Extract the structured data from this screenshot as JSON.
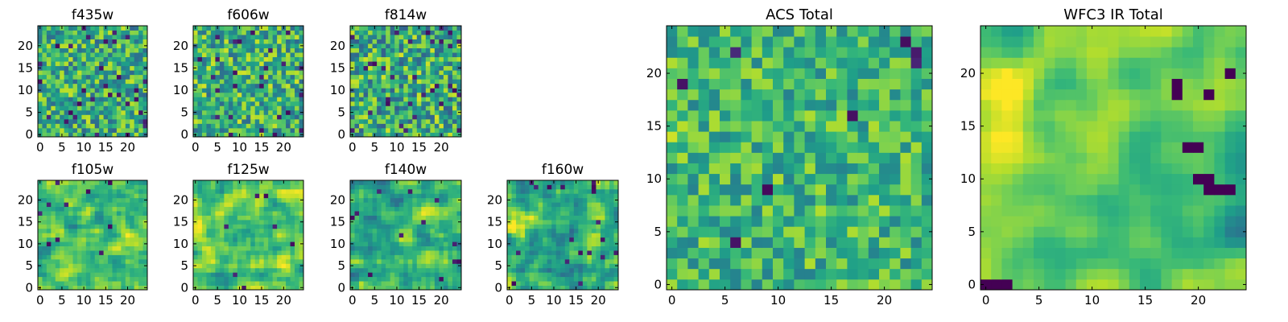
{
  "figure": {
    "colormap": "viridis",
    "axis_color": "#000000",
    "background": "#ffffff"
  },
  "chart_data": [
    {
      "type": "heatmap",
      "title": "f435w",
      "grid_size": 25,
      "xticks": [
        0,
        5,
        10,
        15,
        20
      ],
      "yticks": [
        0,
        5,
        10,
        15,
        20
      ],
      "xlim": [
        -0.5,
        24.5
      ],
      "ylim": [
        -0.5,
        24.5
      ],
      "value_range": [
        0,
        1
      ],
      "seed": 435,
      "smooth": 0,
      "dark_fraction": 0.045,
      "base": 0.62,
      "spread": 0.3,
      "bright_patches": []
    },
    {
      "type": "heatmap",
      "title": "f606w",
      "grid_size": 25,
      "xticks": [
        0,
        5,
        10,
        15,
        20
      ],
      "yticks": [
        0,
        5,
        10,
        15,
        20
      ],
      "xlim": [
        -0.5,
        24.5
      ],
      "ylim": [
        -0.5,
        24.5
      ],
      "value_range": [
        0,
        1
      ],
      "seed": 606,
      "smooth": 0,
      "dark_fraction": 0.035,
      "base": 0.64,
      "spread": 0.3,
      "bright_patches": []
    },
    {
      "type": "heatmap",
      "title": "f814w",
      "grid_size": 25,
      "xticks": [
        0,
        5,
        10,
        15,
        20
      ],
      "yticks": [
        0,
        5,
        10,
        15,
        20
      ],
      "xlim": [
        -0.5,
        24.5
      ],
      "ylim": [
        -0.5,
        24.5
      ],
      "value_range": [
        0,
        1
      ],
      "seed": 814,
      "smooth": 0,
      "dark_fraction": 0.05,
      "base": 0.62,
      "spread": 0.32,
      "bright_patches": []
    },
    {
      "type": "heatmap",
      "title": "f105w",
      "grid_size": 25,
      "xticks": [
        0,
        5,
        10,
        15,
        20
      ],
      "yticks": [
        0,
        5,
        10,
        15,
        20
      ],
      "xlim": [
        -0.5,
        24.5
      ],
      "ylim": [
        -0.5,
        24.5
      ],
      "value_range": [
        0,
        1
      ],
      "seed": 105,
      "smooth": 1,
      "dark_fraction": 0.02,
      "base": 0.7,
      "spread": 0.3,
      "bright_patches": [
        [
          2,
          12,
          4
        ]
      ]
    },
    {
      "type": "heatmap",
      "title": "f125w",
      "grid_size": 25,
      "xticks": [
        0,
        5,
        10,
        15,
        20
      ],
      "yticks": [
        0,
        5,
        10,
        15,
        20
      ],
      "xlim": [
        -0.5,
        24.5
      ],
      "ylim": [
        -0.5,
        24.5
      ],
      "value_range": [
        0,
        1
      ],
      "seed": 125,
      "smooth": 1,
      "dark_fraction": 0.02,
      "base": 0.72,
      "spread": 0.28,
      "bright_patches": [
        [
          1,
          14,
          4
        ]
      ]
    },
    {
      "type": "heatmap",
      "title": "f140w",
      "grid_size": 25,
      "xticks": [
        0,
        5,
        10,
        15,
        20
      ],
      "yticks": [
        0,
        5,
        10,
        15,
        20
      ],
      "xlim": [
        -0.5,
        24.5
      ],
      "ylim": [
        -0.5,
        24.5
      ],
      "value_range": [
        0,
        1
      ],
      "seed": 140,
      "smooth": 1,
      "dark_fraction": 0.03,
      "base": 0.66,
      "spread": 0.32,
      "bright_patches": [
        [
          12,
          11,
          3
        ]
      ]
    },
    {
      "type": "heatmap",
      "title": "f160w",
      "grid_size": 25,
      "xticks": [
        0,
        5,
        10,
        15,
        20
      ],
      "yticks": [
        0,
        5,
        10,
        15,
        20
      ],
      "xlim": [
        -0.5,
        24.5
      ],
      "ylim": [
        -0.5,
        24.5
      ],
      "value_range": [
        0,
        1
      ],
      "seed": 160,
      "smooth": 1,
      "dark_fraction": 0.035,
      "base": 0.66,
      "spread": 0.32,
      "bright_patches": [
        [
          1,
          15,
          4
        ]
      ]
    },
    {
      "type": "heatmap",
      "title": "ACS Total",
      "grid_size": 25,
      "xticks": [
        0,
        5,
        10,
        15,
        20
      ],
      "yticks": [
        0,
        5,
        10,
        15,
        20
      ],
      "xlim": [
        -0.5,
        24.5
      ],
      "ylim": [
        -0.5,
        24.5
      ],
      "value_range": [
        0,
        1
      ],
      "seed": 7001,
      "smooth": 0,
      "dark_fraction": 0.015,
      "base": 0.66,
      "spread": 0.22,
      "bright_patches": [
        [
          0,
          14,
          3
        ]
      ]
    },
    {
      "type": "heatmap",
      "title": "WFC3 IR Total",
      "grid_size": 25,
      "xticks": [
        0,
        5,
        10,
        15,
        20
      ],
      "yticks": [
        0,
        5,
        10,
        15,
        20
      ],
      "xlim": [
        -0.5,
        24.5
      ],
      "ylim": [
        -0.5,
        24.5
      ],
      "value_range": [
        0,
        1
      ],
      "seed": 7002,
      "smooth": 2,
      "dark_fraction": 0.0,
      "base": 0.66,
      "spread": 0.26,
      "bright_patches": [
        [
          1,
          14,
          5
        ],
        [
          2,
          20,
          4
        ]
      ],
      "dark_cells": [
        [
          0,
          0
        ],
        [
          1,
          0
        ],
        [
          2,
          0
        ],
        [
          19,
          13
        ],
        [
          20,
          13
        ],
        [
          20,
          10
        ],
        [
          21,
          10
        ],
        [
          21,
          9
        ],
        [
          22,
          9
        ],
        [
          23,
          9
        ],
        [
          18,
          19
        ],
        [
          18,
          18
        ],
        [
          21,
          18
        ],
        [
          23,
          20
        ]
      ]
    }
  ]
}
